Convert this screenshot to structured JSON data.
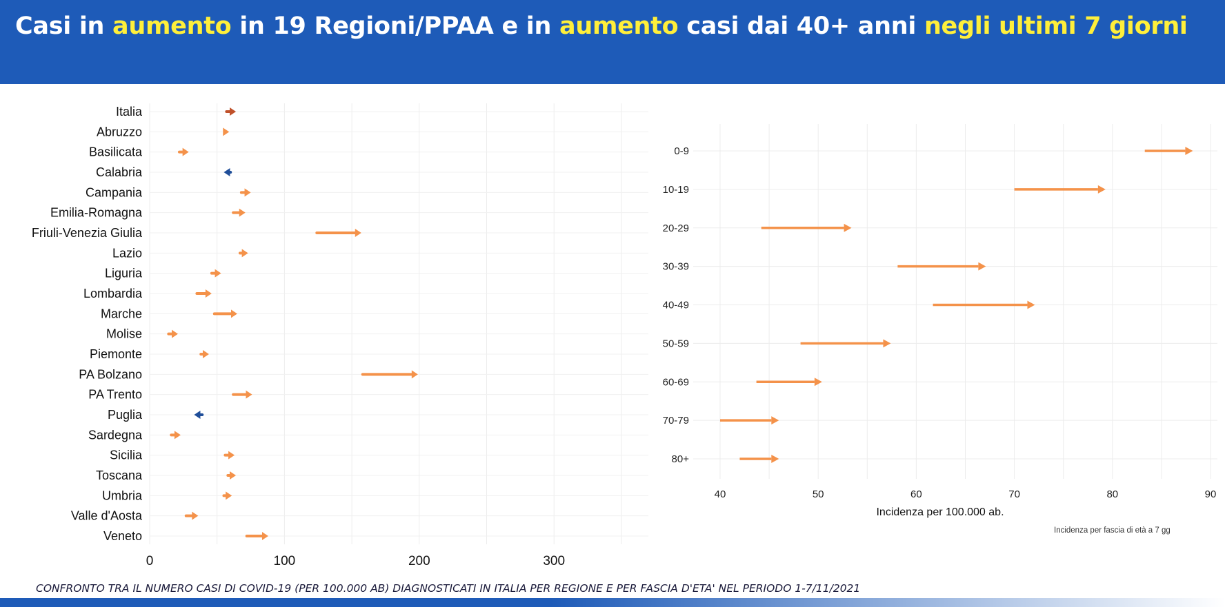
{
  "header": {
    "title_parts": [
      {
        "text": "Casi in ",
        "hl": false
      },
      {
        "text": "aumento",
        "hl": true
      },
      {
        "text": " in 19 Regioni/PPAA e in ",
        "hl": false
      },
      {
        "text": "aumento",
        "hl": true
      },
      {
        "text": " casi dai 40+ anni ",
        "hl": false
      },
      {
        "text": "negli ultimi 7 giorni",
        "hl": true
      }
    ]
  },
  "colors": {
    "header_bg": "#1e5bb8",
    "highlight": "#ffef3a",
    "increase": "#f4924a",
    "italia": "#c0512a",
    "decrease": "#1f4e99"
  },
  "chart_data": [
    {
      "type": "arrow",
      "xlim": [
        0,
        370
      ],
      "xticks": [
        0,
        100,
        200,
        300
      ],
      "regions": [
        {
          "name": "Italia",
          "from": 57,
          "to": 64,
          "dir": "up"
        },
        {
          "name": "Abruzzo",
          "from": 55,
          "to": 59,
          "dir": "up"
        },
        {
          "name": "Basilicata",
          "from": 22,
          "to": 29,
          "dir": "up"
        },
        {
          "name": "Calabria",
          "from": 60,
          "to": 55,
          "dir": "down"
        },
        {
          "name": "Campania",
          "from": 68,
          "to": 75,
          "dir": "up"
        },
        {
          "name": "Emilia-Romagna",
          "from": 62,
          "to": 71,
          "dir": "up"
        },
        {
          "name": "Friuli-Venezia Giulia",
          "from": 124,
          "to": 157,
          "dir": "up"
        },
        {
          "name": "Lazio",
          "from": 67,
          "to": 73,
          "dir": "up"
        },
        {
          "name": "Liguria",
          "from": 46,
          "to": 53,
          "dir": "up"
        },
        {
          "name": "Lombardia",
          "from": 35,
          "to": 46,
          "dir": "up"
        },
        {
          "name": "Marche",
          "from": 48,
          "to": 65,
          "dir": "up"
        },
        {
          "name": "Molise",
          "from": 14,
          "to": 21,
          "dir": "up"
        },
        {
          "name": "Piemonte",
          "from": 38,
          "to": 44,
          "dir": "up"
        },
        {
          "name": "PA Bolzano",
          "from": 158,
          "to": 199,
          "dir": "up"
        },
        {
          "name": "PA Trento",
          "from": 62,
          "to": 76,
          "dir": "up"
        },
        {
          "name": "Puglia",
          "from": 39,
          "to": 33,
          "dir": "down"
        },
        {
          "name": "Sardegna",
          "from": 16,
          "to": 23,
          "dir": "up"
        },
        {
          "name": "Sicilia",
          "from": 56,
          "to": 63,
          "dir": "up"
        },
        {
          "name": "Toscana",
          "from": 58,
          "to": 64,
          "dir": "up"
        },
        {
          "name": "Umbria",
          "from": 55,
          "to": 61,
          "dir": "up"
        },
        {
          "name": "Valle d'Aosta",
          "from": 27,
          "to": 36,
          "dir": "up"
        },
        {
          "name": "Veneto",
          "from": 72,
          "to": 88,
          "dir": "up"
        }
      ]
    },
    {
      "type": "arrow",
      "xlim": [
        38,
        90
      ],
      "xticks": [
        40,
        50,
        60,
        70,
        80,
        90
      ],
      "xlabel": "Incidenza per 100.000 ab.",
      "caption": "Incidenza per fascia di età a 7 gg",
      "groups": [
        {
          "name": "0-9",
          "from": 83.3,
          "to": 88.2
        },
        {
          "name": "10-19",
          "from": 70.0,
          "to": 79.3
        },
        {
          "name": "20-29",
          "from": 44.2,
          "to": 53.4
        },
        {
          "name": "30-39",
          "from": 58.1,
          "to": 67.1
        },
        {
          "name": "40-49",
          "from": 61.7,
          "to": 72.1
        },
        {
          "name": "50-59",
          "from": 48.2,
          "to": 57.4
        },
        {
          "name": "60-69",
          "from": 43.7,
          "to": 50.4
        },
        {
          "name": "70-79",
          "from": 40.0,
          "to": 46.0
        },
        {
          "name": "80+",
          "from": 42.0,
          "to": 46.0
        }
      ]
    }
  ],
  "footer": {
    "text": "CONFRONTO TRA IL NUMERO CASI DI COVID-19 (PER 100.000 AB) DIAGNOSTICATI IN ITALIA PER REGIONE E PER FASCIA D'ETA' NEL PERIODO   1-7/11/2021"
  }
}
